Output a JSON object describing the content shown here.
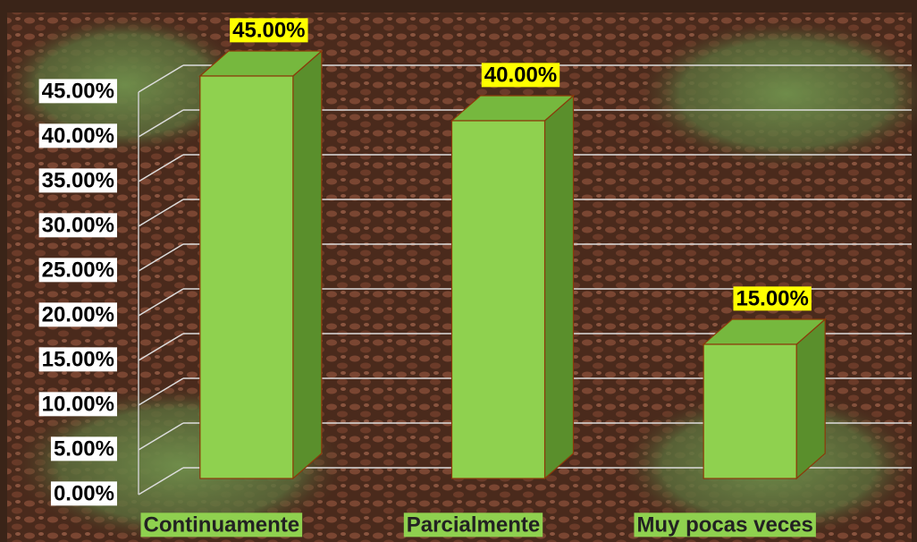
{
  "chart_data": {
    "type": "bar3d",
    "categories": [
      "Continuamente",
      "Parcialmente",
      "Muy pocas veces"
    ],
    "values": [
      45,
      40,
      15
    ],
    "value_labels": [
      "45.00%",
      "40.00%",
      "15.00%"
    ],
    "color": "#8fd14f",
    "ylim": [
      0,
      45
    ],
    "yticks": [
      {
        "value": 0,
        "label": "0.00%"
      },
      {
        "value": 5,
        "label": "5.00%"
      },
      {
        "value": 10,
        "label": "10.00%"
      },
      {
        "value": 15,
        "label": "15.00%"
      },
      {
        "value": 20,
        "label": "20.00%"
      },
      {
        "value": 25,
        "label": "25.00%"
      },
      {
        "value": 30,
        "label": "30.00%"
      },
      {
        "value": 35,
        "label": "35.00%"
      },
      {
        "value": 40,
        "label": "40.00%"
      },
      {
        "value": 45,
        "label": "45.00%"
      }
    ],
    "grid": true
  }
}
